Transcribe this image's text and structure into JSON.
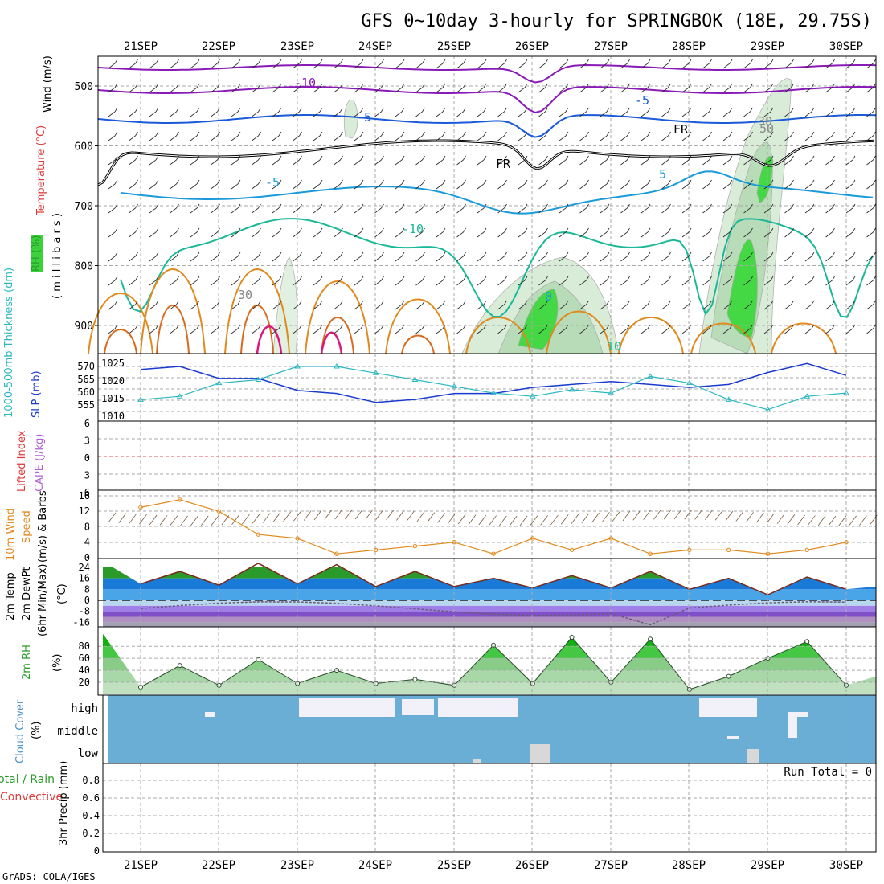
{
  "title": "GFS 0~10day 3-hourly for SPRINGBOK (18E, 29.75S)",
  "footer": "GrADS: COLA/IGES",
  "dates": [
    "21SEP",
    "22SEP",
    "23SEP",
    "24SEP",
    "25SEP",
    "26SEP",
    "27SEP",
    "28SEP",
    "29SEP",
    "30SEP"
  ],
  "colors": {
    "temp_orange": "#e08a1e",
    "wind_purple": "#8a1ab8",
    "five_blue": "#1a5ad8",
    "ten_cyan": "#1a9ad8",
    "rh_green": "#3cd23c",
    "slp_blue": "#1a3ad0",
    "thick_cyan": "#2ab8c0",
    "cloud_blue": "#6aaed6",
    "cloud_white": "#f2f0f8"
  },
  "panels": {
    "upper": {
      "label_wind": "Wind (m/s)",
      "label_temp": "Temperature (°C)",
      "label_rh": "RH (%)",
      "label_mb": "( m i l l i b a r s )",
      "y_ticks": [
        "500",
        "600",
        "700",
        "800",
        "900"
      ],
      "contour_labels": [
        "-10",
        "-5",
        "FR",
        "FR",
        "-5",
        "-5",
        "5",
        "-10",
        "30",
        "30",
        "50",
        "0",
        "10"
      ]
    },
    "slp": {
      "label_thick": "1000-500mb Thickness (dm)",
      "label_slp": "SLP (mb)",
      "left_ticks": [
        "570",
        "565",
        "560",
        "555"
      ],
      "right_ticks": [
        "1025",
        "1020",
        "1015",
        "1010"
      ]
    },
    "li": {
      "label_li": "Lifted Index",
      "label_cape": "CAPE (J/kg)",
      "ticks": [
        "6",
        "3",
        "0",
        "3",
        "6"
      ]
    },
    "wind10": {
      "label_a": "10m Wind",
      "label_b": "Speed",
      "label_c": "(m/s) & Barbs",
      "ticks": [
        "16",
        "12",
        "8",
        "4",
        "0"
      ]
    },
    "temp2m": {
      "label_a": "2m Temp",
      "label_b": "2m DewPt",
      "label_c": "(6hr Min/Max)",
      "unit": "(°C)",
      "ticks": [
        "24",
        "16",
        "8",
        "0",
        "-8",
        "-16"
      ]
    },
    "rh2m": {
      "label": "2m RH",
      "unit": "(%)",
      "ticks": [
        "80",
        "60",
        "40",
        "20"
      ]
    },
    "cloud": {
      "label": "Cloud Cover",
      "unit": "(%)",
      "levels": [
        "high",
        "middle",
        "low"
      ]
    },
    "precip": {
      "label_a": "Total / Rain",
      "label_b": "Convective",
      "label_c": "3hr Precip (mm)",
      "run_total": "Run Total = 0",
      "ticks": [
        "0.8",
        "0.6",
        "0.4",
        "0.2",
        "0"
      ]
    }
  },
  "chart_data": [
    {
      "type": "line",
      "title": "SLP (mb) and 1000-500mb Thickness (dm)",
      "x": [
        "21SEP",
        "21.5",
        "22SEP",
        "22.5",
        "23SEP",
        "23.5",
        "24SEP",
        "24.5",
        "25SEP",
        "25.5",
        "26SEP",
        "26.5",
        "27SEP",
        "27.5",
        "28SEP",
        "28.5",
        "29SEP",
        "29.5",
        "30SEP"
      ],
      "series": [
        {
          "name": "SLP (mb)",
          "values": [
            1024,
            1025,
            1021,
            1021,
            1017,
            1016,
            1013,
            1014,
            1016,
            1016,
            1018,
            1019,
            1020,
            1019,
            1018,
            1019,
            1023,
            1026,
            1022
          ]
        },
        {
          "name": "1000-500mb Thickness (dm)",
          "values": [
            560,
            561,
            565,
            566,
            570,
            570,
            568,
            566,
            564,
            562,
            561,
            563,
            562,
            567,
            565,
            560,
            557,
            561,
            562
          ]
        }
      ]
    },
    {
      "type": "line",
      "title": "10m Wind Speed (m/s)",
      "ylim": [
        0,
        16
      ],
      "x": [
        "21SEP",
        "21.5",
        "22SEP",
        "22.5",
        "23SEP",
        "23.5",
        "24SEP",
        "24.5",
        "25SEP",
        "25.5",
        "26SEP",
        "26.5",
        "27SEP",
        "27.5",
        "28SEP",
        "28.5",
        "29SEP",
        "29.5",
        "30SEP"
      ],
      "values": [
        13,
        15,
        12,
        6,
        5,
        1,
        2,
        3,
        4,
        1,
        5,
        2,
        5,
        1,
        2,
        2,
        1,
        2,
        4
      ]
    },
    {
      "type": "area",
      "title": "2m Temp (°C)",
      "x": [
        "21SEP",
        "21.5",
        "22SEP",
        "22.5",
        "23SEP",
        "23.5",
        "24SEP",
        "24.5",
        "25SEP",
        "25.5",
        "26SEP",
        "26.5",
        "27SEP",
        "27.5",
        "28SEP",
        "28.5",
        "29SEP",
        "29.5",
        "30SEP"
      ],
      "values": [
        12,
        21,
        11,
        27,
        12,
        26,
        10,
        21,
        10,
        16,
        9,
        18,
        9,
        21,
        8,
        16,
        4,
        17,
        8
      ]
    },
    {
      "type": "area",
      "title": "2m RH (%)",
      "ylim": [
        0,
        100
      ],
      "x": [
        "21SEP",
        "21.5",
        "22SEP",
        "22.5",
        "23SEP",
        "23.5",
        "24SEP",
        "24.5",
        "25SEP",
        "25.5",
        "26SEP",
        "26.5",
        "27SEP",
        "27.5",
        "28SEP",
        "28.5",
        "29SEP",
        "29.5",
        "30SEP"
      ],
      "values": [
        12,
        48,
        15,
        58,
        18,
        40,
        18,
        25,
        15,
        82,
        18,
        95,
        20,
        92,
        8,
        30,
        60,
        88,
        15
      ]
    }
  ]
}
